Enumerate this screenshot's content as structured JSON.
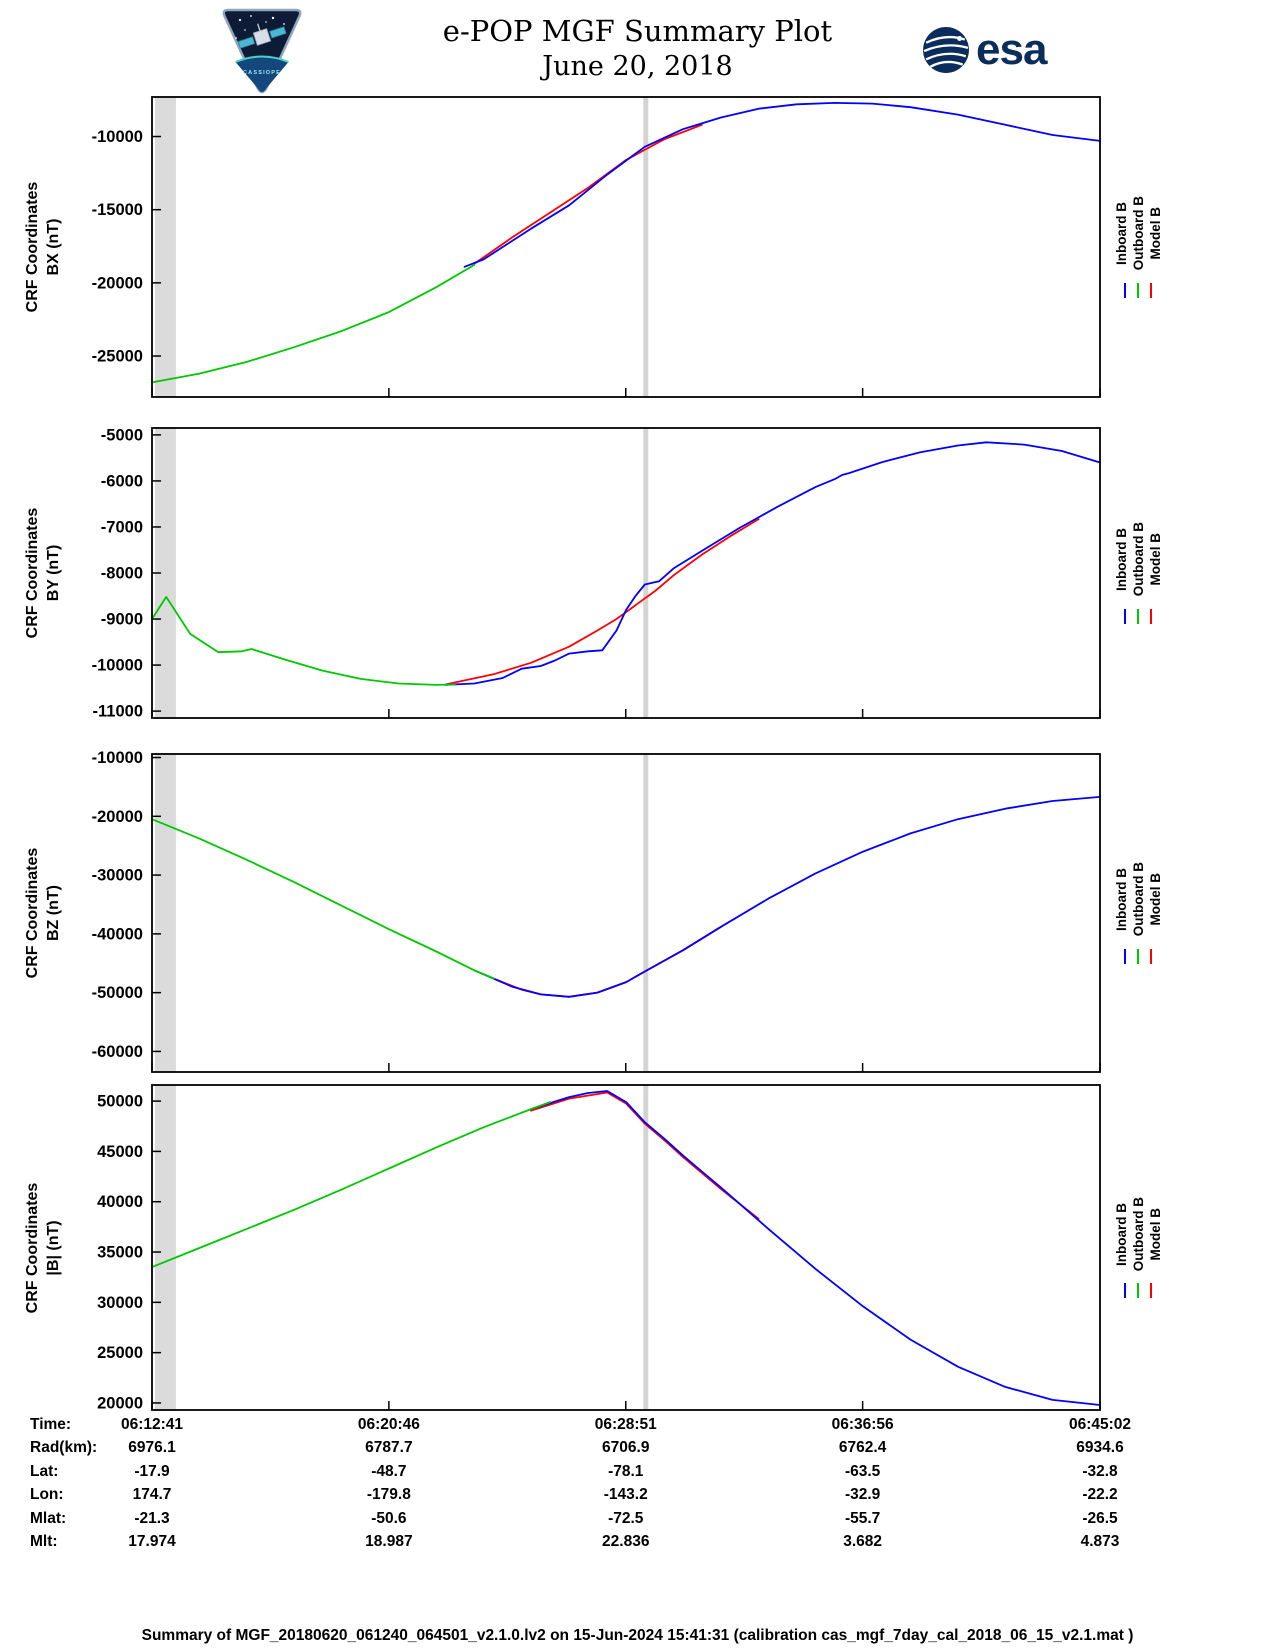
{
  "header": {
    "title_line1": "e-POP MGF Summary Plot",
    "title_line2": "June 20, 2018"
  },
  "logos": {
    "cassiope_patch_icon": "cassiope-mission-patch",
    "cassiope_text": "CASSIOPE",
    "esa_icon": "esa-globe-logo",
    "esa_text": "esa",
    "esa_blue": "#0b2d5c"
  },
  "colors": {
    "inboard": "#0000ff",
    "outboard": "#00c800",
    "model": "#ff0000",
    "gray_band": "#dbdbdb",
    "gray_line": "#d4d4d4",
    "axis": "#000000"
  },
  "legend": {
    "entries": [
      {
        "label": "Inboard B",
        "color": "#0000ff"
      },
      {
        "label": "Outboard B",
        "color": "#00c800"
      },
      {
        "label": "Model B",
        "color": "#ff0000"
      }
    ]
  },
  "time_axis": {
    "t_max": 1941,
    "ticks_t": [
      0,
      485,
      970,
      1455,
      1941
    ],
    "tick_labels": [
      "06:12:41",
      "06:20:46",
      "06:28:51",
      "06:36:56",
      "06:45:02"
    ],
    "gray_band_t": [
      6,
      49
    ],
    "gray_line_t": 1011
  },
  "chart_data": [
    {
      "type": "line",
      "id": "bx",
      "ylabel": [
        "CRF Coordinates",
        "BX (nT)"
      ],
      "ylim": [
        -27800,
        -7300
      ],
      "yticks": [
        -25000,
        -20000,
        -15000,
        -10000
      ],
      "series": [
        {
          "name": "Inboard B",
          "color": "#0000ff",
          "points": [
            [
              640,
              -18900
            ],
            [
              679,
              -18400
            ],
            [
              776,
              -16300
            ],
            [
              854,
              -14700
            ],
            [
              932,
              -12600
            ],
            [
              1009,
              -10700
            ],
            [
              1087,
              -9500
            ],
            [
              1165,
              -8700
            ],
            [
              1242,
              -8100
            ],
            [
              1320,
              -7800
            ],
            [
              1398,
              -7700
            ],
            [
              1475,
              -7750
            ],
            [
              1553,
              -8000
            ],
            [
              1650,
              -8500
            ],
            [
              1747,
              -9200
            ],
            [
              1844,
              -9900
            ],
            [
              1941,
              -10300
            ]
          ]
        },
        {
          "name": "Outboard B",
          "color": "#00c800",
          "points": [
            [
              0,
              -26800
            ],
            [
              97,
              -26200
            ],
            [
              194,
              -25400
            ],
            [
              291,
              -24400
            ],
            [
              388,
              -23300
            ],
            [
              485,
              -22000
            ],
            [
              582,
              -20300
            ],
            [
              660,
              -18770
            ]
          ]
        },
        {
          "name": "Model B",
          "color": "#ff0000",
          "points": [
            [
              660,
              -18700
            ],
            [
              737,
              -16900
            ],
            [
              815,
              -15200
            ],
            [
              893,
              -13500
            ],
            [
              971,
              -11600
            ],
            [
              1048,
              -10200
            ],
            [
              1126,
              -9200
            ]
          ]
        }
      ]
    },
    {
      "type": "line",
      "id": "by",
      "ylabel": [
        "CRF Coordinates",
        "BY (nT)"
      ],
      "ylim": [
        -11150,
        -4850
      ],
      "yticks": [
        -11000,
        -10000,
        -9000,
        -8000,
        -7000,
        -6000,
        -5000
      ],
      "series": [
        {
          "name": "Inboard B",
          "color": "#0000ff",
          "points": [
            [
              600,
              -10430
            ],
            [
              660,
              -10400
            ],
            [
              718,
              -10280
            ],
            [
              757,
              -10080
            ],
            [
              796,
              -10020
            ],
            [
              825,
              -9900
            ],
            [
              854,
              -9750
            ],
            [
              893,
              -9700
            ],
            [
              922,
              -9680
            ],
            [
              951,
              -9250
            ],
            [
              971,
              -8800
            ],
            [
              990,
              -8500
            ],
            [
              1009,
              -8250
            ],
            [
              1038,
              -8180
            ],
            [
              1068,
              -7900
            ],
            [
              1126,
              -7520
            ],
            [
              1203,
              -7020
            ],
            [
              1281,
              -6560
            ],
            [
              1359,
              -6130
            ],
            [
              1398,
              -5960
            ],
            [
              1413,
              -5870
            ],
            [
              1427,
              -5830
            ],
            [
              1495,
              -5590
            ],
            [
              1572,
              -5380
            ],
            [
              1650,
              -5230
            ],
            [
              1708,
              -5160
            ],
            [
              1786,
              -5210
            ],
            [
              1863,
              -5350
            ],
            [
              1941,
              -5600
            ]
          ]
        },
        {
          "name": "Outboard B",
          "color": "#00c800",
          "points": [
            [
              0,
              -9000
            ],
            [
              29,
              -8520
            ],
            [
              78,
              -9320
            ],
            [
              136,
              -9720
            ],
            [
              184,
              -9700
            ],
            [
              204,
              -9650
            ],
            [
              272,
              -9880
            ],
            [
              349,
              -10120
            ],
            [
              427,
              -10300
            ],
            [
              505,
              -10400
            ],
            [
              582,
              -10430
            ],
            [
              620,
              -10420
            ]
          ]
        },
        {
          "name": "Model B",
          "color": "#ff0000",
          "points": [
            [
              602,
              -10420
            ],
            [
              699,
              -10200
            ],
            [
              776,
              -9950
            ],
            [
              854,
              -9600
            ],
            [
              912,
              -9250
            ],
            [
              951,
              -9000
            ],
            [
              990,
              -8700
            ],
            [
              1029,
              -8400
            ],
            [
              1068,
              -8050
            ],
            [
              1126,
              -7600
            ],
            [
              1184,
              -7200
            ],
            [
              1242,
              -6830
            ]
          ]
        }
      ]
    },
    {
      "type": "line",
      "id": "bz",
      "ylabel": [
        "CRF Coordinates",
        "BZ (nT)"
      ],
      "ylim": [
        -63500,
        -9400
      ],
      "yticks": [
        -60000,
        -50000,
        -40000,
        -30000,
        -20000,
        -10000
      ],
      "series": [
        {
          "name": "Inboard B",
          "color": "#0000ff",
          "points": [
            [
              660,
              -46200
            ],
            [
              738,
              -49000
            ],
            [
              796,
              -50300
            ],
            [
              854,
              -50700
            ],
            [
              912,
              -50000
            ],
            [
              971,
              -48200
            ],
            [
              1009,
              -46400
            ],
            [
              1087,
              -42800
            ],
            [
              1165,
              -38800
            ],
            [
              1262,
              -34000
            ],
            [
              1359,
              -29700
            ],
            [
              1456,
              -26000
            ],
            [
              1553,
              -22900
            ],
            [
              1650,
              -20500
            ],
            [
              1747,
              -18700
            ],
            [
              1844,
              -17400
            ],
            [
              1941,
              -16700
            ]
          ]
        },
        {
          "name": "Outboard B",
          "color": "#00c800",
          "points": [
            [
              0,
              -20500
            ],
            [
              97,
              -23800
            ],
            [
              194,
              -27400
            ],
            [
              291,
              -31200
            ],
            [
              388,
              -35200
            ],
            [
              485,
              -39200
            ],
            [
              582,
              -43000
            ],
            [
              660,
              -46200
            ],
            [
              700,
              -47600
            ]
          ]
        },
        {
          "name": "Model B",
          "color": "#ff0000",
          "points": [
            [
              699,
              -47600
            ],
            [
              757,
              -49500
            ],
            [
              796,
              -50300
            ],
            [
              854,
              -50700
            ],
            [
              912,
              -50000
            ],
            [
              971,
              -48200
            ],
            [
              1009,
              -46400
            ],
            [
              1087,
              -42800
            ],
            [
              1165,
              -38800
            ]
          ]
        }
      ]
    },
    {
      "type": "line",
      "id": "bmag",
      "ylabel": [
        "CRF Coordinates",
        "|B| (nT)"
      ],
      "ylim": [
        19300,
        51600
      ],
      "yticks": [
        20000,
        25000,
        30000,
        35000,
        40000,
        45000,
        50000
      ],
      "series": [
        {
          "name": "Inboard B",
          "color": "#0000ff",
          "points": [
            [
              776,
              49200
            ],
            [
              854,
              50400
            ],
            [
              893,
              50800
            ],
            [
              932,
              51000
            ],
            [
              971,
              49900
            ],
            [
              1009,
              47900
            ],
            [
              1048,
              46300
            ],
            [
              1087,
              44600
            ],
            [
              1126,
              43000
            ],
            [
              1165,
              41400
            ],
            [
              1262,
              37300
            ],
            [
              1359,
              33300
            ],
            [
              1456,
              29600
            ],
            [
              1553,
              26300
            ],
            [
              1650,
              23600
            ],
            [
              1747,
              21600
            ],
            [
              1844,
              20300
            ],
            [
              1941,
              19800
            ]
          ]
        },
        {
          "name": "Outboard B",
          "color": "#00c800",
          "points": [
            [
              0,
              33500
            ],
            [
              97,
              35400
            ],
            [
              194,
              37300
            ],
            [
              291,
              39200
            ],
            [
              388,
              41200
            ],
            [
              485,
              43300
            ],
            [
              582,
              45400
            ],
            [
              679,
              47400
            ],
            [
              776,
              49200
            ],
            [
              815,
              49900
            ]
          ]
        },
        {
          "name": "Model B",
          "color": "#ff0000",
          "points": [
            [
              776,
              49050
            ],
            [
              854,
              50250
            ],
            [
              932,
              50850
            ],
            [
              971,
              49750
            ],
            [
              1009,
              47750
            ],
            [
              1048,
              46150
            ],
            [
              1087,
              44450
            ],
            [
              1165,
              41250
            ],
            [
              1242,
              38300
            ]
          ]
        }
      ]
    }
  ],
  "table": {
    "rows": [
      {
        "label": "Time:",
        "values": [
          "06:12:41",
          "06:20:46",
          "06:28:51",
          "06:36:56",
          "06:45:02"
        ]
      },
      {
        "label": "Rad(km):",
        "values": [
          "6976.1",
          "6787.7",
          "6706.9",
          "6762.4",
          "6934.6"
        ]
      },
      {
        "label": "Lat:",
        "values": [
          "-17.9",
          "-48.7",
          "-78.1",
          "-63.5",
          "-32.8"
        ]
      },
      {
        "label": "Lon:",
        "values": [
          "174.7",
          "-179.8",
          "-143.2",
          "-32.9",
          "-22.2"
        ]
      },
      {
        "label": "Mlat:",
        "values": [
          "-21.3",
          "-50.6",
          "-72.5",
          "-55.7",
          "-26.5"
        ]
      },
      {
        "label": "Mlt:",
        "values": [
          "17.974",
          "18.987",
          "22.836",
          "3.682",
          "4.873"
        ]
      }
    ]
  },
  "footer": {
    "text": "Summary of MGF_20180620_061240_064501_v2.1.0.lv2 on 15-Jun-2024 15:41:31 (calibration cas_mgf_7day_cal_2018_06_15_v2.1.mat )"
  }
}
